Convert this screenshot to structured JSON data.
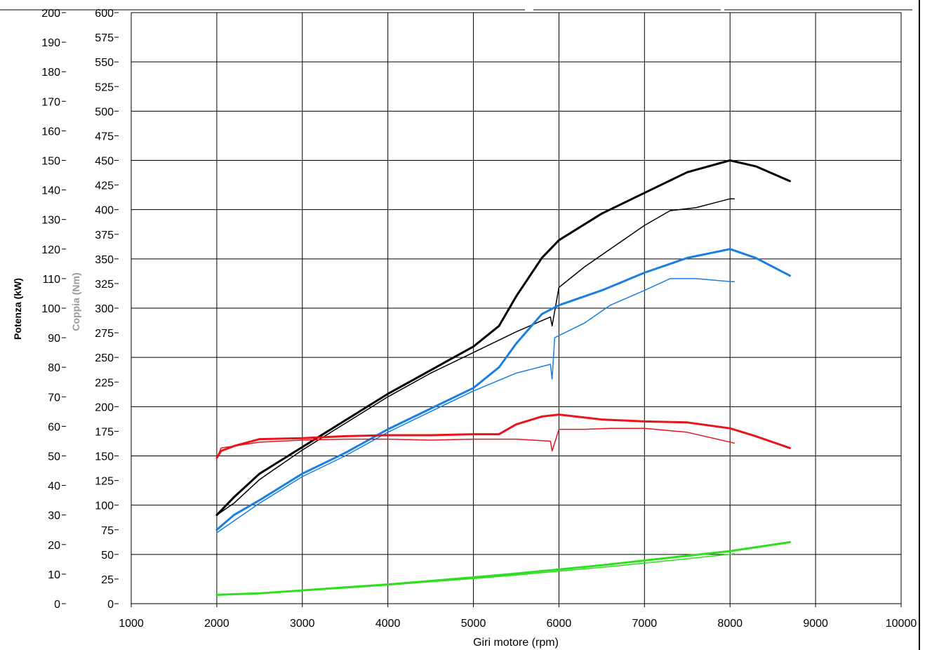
{
  "chart_data": {
    "type": "line",
    "xlabel": "Giri motore (rpm)",
    "ylabel_left": "Potenza (kW)",
    "ylabel_right": "Coppia (Nm)",
    "xlim": [
      1000,
      10000
    ],
    "ylim_power": [
      0,
      200
    ],
    "ylim_torque": [
      0,
      600
    ],
    "grid": true,
    "x_ticks": [
      "1000",
      "2000",
      "3000",
      "4000",
      "5000",
      "6000",
      "7000",
      "8000",
      "9000",
      "10000"
    ],
    "power_ticks": [
      "0",
      "10",
      "20",
      "30",
      "40",
      "50",
      "60",
      "70",
      "80",
      "90",
      "100",
      "110",
      "120",
      "130",
      "140",
      "150",
      "160",
      "170",
      "180",
      "190",
      "200"
    ],
    "torque_ticks": [
      "0",
      "25",
      "50",
      "75",
      "100",
      "125",
      "150",
      "175",
      "200",
      "225",
      "250",
      "275",
      "300",
      "325",
      "350",
      "375",
      "400",
      "425",
      "450",
      "475",
      "500",
      "525",
      "550",
      "575",
      "600"
    ],
    "series": [
      {
        "axis": "power",
        "color": "#000000",
        "width": 3,
        "x": [
          2000,
          2200,
          2500,
          3000,
          3500,
          4000,
          4500,
          5000,
          5300,
          5500,
          5800,
          6000,
          6500,
          7000,
          7500,
          8000,
          8300,
          8700
        ],
        "y": [
          30,
          36,
          44,
          53,
          62,
          71,
          79,
          87,
          94,
          104,
          117,
          123,
          132,
          139,
          146,
          150,
          148,
          143
        ]
      },
      {
        "axis": "power",
        "color": "#000000",
        "width": 1.5,
        "x": [
          2000,
          2200,
          2500,
          3000,
          3500,
          4000,
          4500,
          5000,
          5500,
          5900,
          5920,
          6000,
          6300,
          6600,
          7000,
          7300,
          7600,
          8000,
          8050
        ],
        "y": [
          30,
          34,
          42,
          52,
          61,
          70,
          78,
          85,
          92,
          97,
          94,
          107,
          114,
          120,
          128,
          133,
          134,
          137,
          137
        ]
      },
      {
        "axis": "power",
        "color": "#1a7fe0",
        "width": 3,
        "x": [
          2000,
          2200,
          2500,
          3000,
          3500,
          4000,
          4500,
          5000,
          5300,
          5500,
          5800,
          6000,
          6500,
          7000,
          7500,
          8000,
          8300,
          8700
        ],
        "y": [
          25,
          30,
          35,
          44,
          51,
          59,
          66,
          73,
          80,
          88,
          98,
          101,
          106,
          112,
          117,
          120,
          117,
          111
        ]
      },
      {
        "axis": "power",
        "color": "#1a7fe0",
        "width": 1.5,
        "x": [
          2000,
          2200,
          2500,
          3000,
          3500,
          4000,
          4500,
          5000,
          5500,
          5900,
          5920,
          5950,
          6300,
          6600,
          7000,
          7300,
          7600,
          8000,
          8050
        ],
        "y": [
          24,
          28,
          34,
          43,
          50,
          58,
          65,
          72,
          78,
          81,
          76,
          90,
          95,
          101,
          106,
          110,
          110,
          109,
          109
        ]
      },
      {
        "axis": "torque",
        "color": "#e8141c",
        "width": 3,
        "x": [
          2000,
          2050,
          2200,
          2500,
          3000,
          3500,
          4000,
          4500,
          5000,
          5300,
          5500,
          5800,
          6000,
          6500,
          7000,
          7500,
          8000,
          8300,
          8700
        ],
        "y": [
          148,
          155,
          160,
          167,
          168,
          170,
          171,
          171,
          172,
          172,
          182,
          190,
          192,
          187,
          185,
          184,
          178,
          170,
          158
        ]
      },
      {
        "axis": "torque",
        "color": "#e8141c",
        "width": 1.5,
        "x": [
          2000,
          2050,
          2200,
          2500,
          3000,
          3500,
          4000,
          4500,
          5000,
          5500,
          5900,
          5920,
          6000,
          6300,
          6600,
          7000,
          7500,
          8050
        ],
        "y": [
          148,
          158,
          160,
          164,
          166,
          167,
          167,
          166,
          167,
          167,
          165,
          155,
          177,
          177,
          178,
          178,
          174,
          163
        ]
      },
      {
        "axis": "power",
        "color": "#2fde1f",
        "width": 3,
        "x": [
          2000,
          2500,
          3000,
          3500,
          4000,
          4500,
          5000,
          5500,
          6000,
          6500,
          7000,
          7500,
          8000,
          8700
        ],
        "y": [
          3,
          3.5,
          4.5,
          5.5,
          6.5,
          7.7,
          8.9,
          10.2,
          11.6,
          13,
          14.6,
          16.2,
          17.8,
          20.8
        ]
      },
      {
        "axis": "power",
        "color": "#2fde1f",
        "width": 1.5,
        "x": [
          2000,
          2500,
          3000,
          3500,
          4000,
          4500,
          5000,
          5500,
          6000,
          6500,
          7000,
          7500,
          8050
        ],
        "y": [
          3,
          3.5,
          4.4,
          5.3,
          6.3,
          7.4,
          8.5,
          9.7,
          11.0,
          12.3,
          13.7,
          15.2,
          16.9
        ]
      }
    ]
  }
}
